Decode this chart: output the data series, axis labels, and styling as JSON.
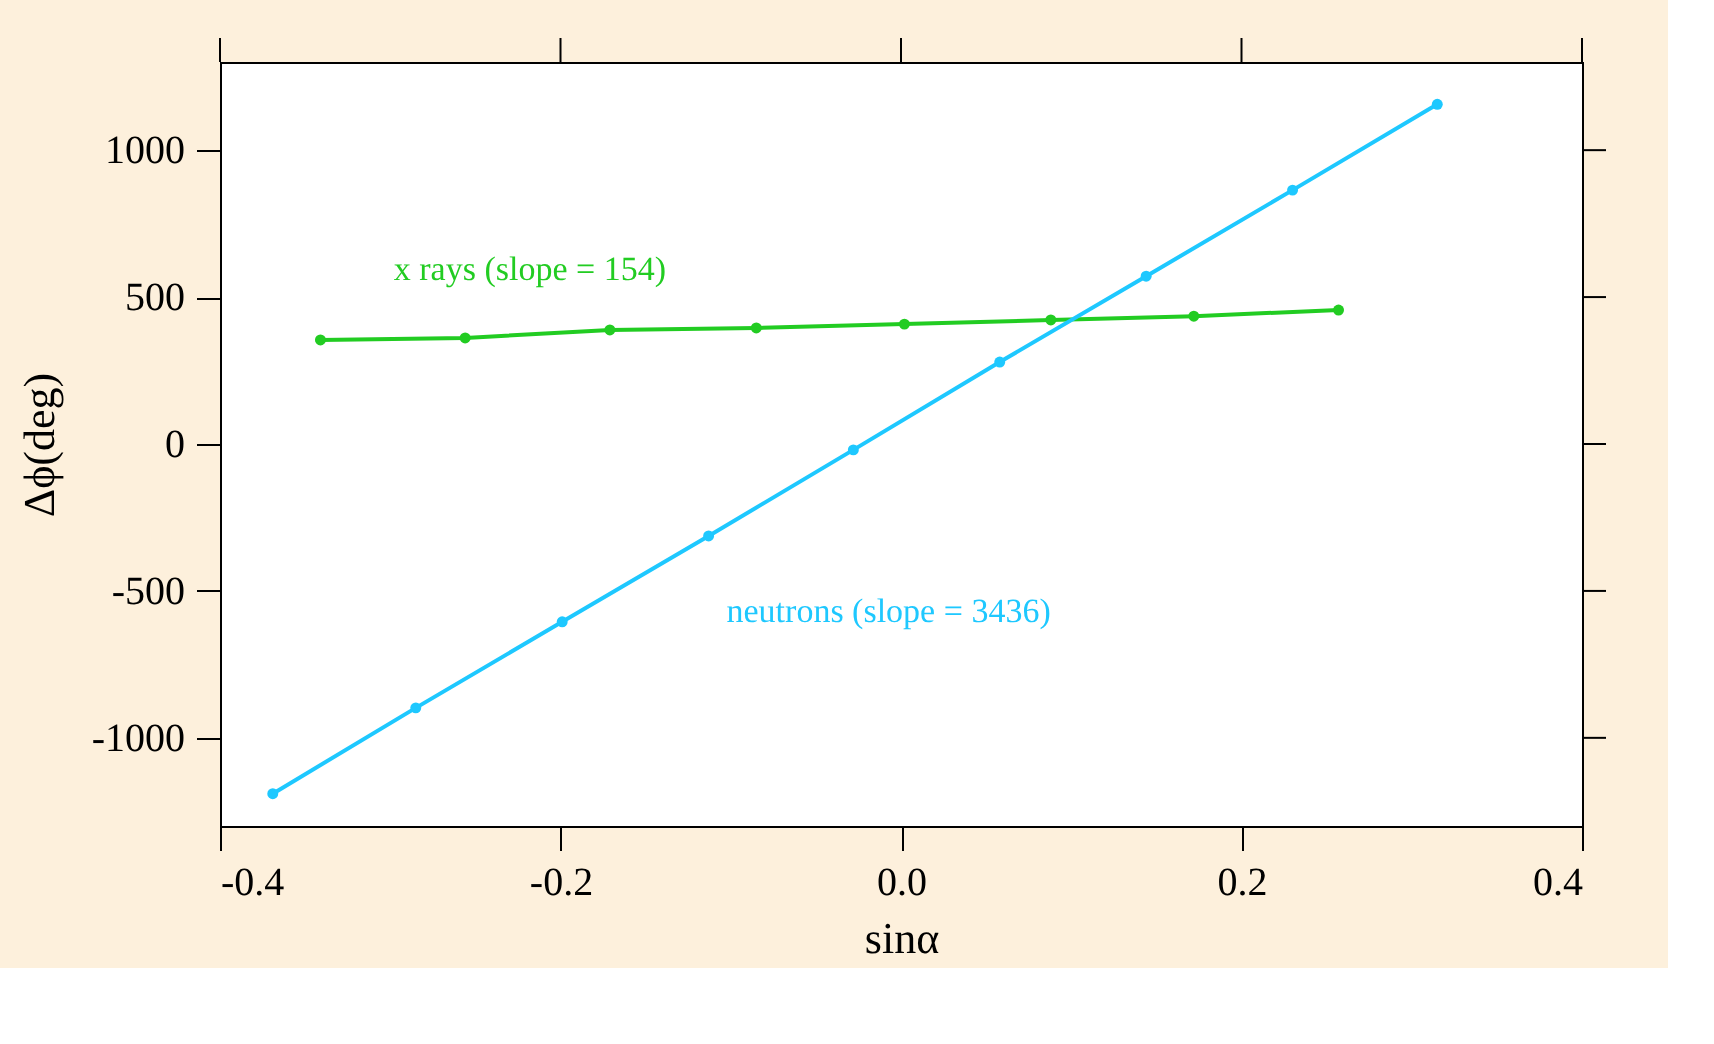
{
  "chart_data": {
    "type": "line",
    "xlabel": "sinα",
    "ylabel": "Δϕ(deg)",
    "xlim": [
      -0.4,
      0.4
    ],
    "xticks": [
      -0.4,
      {
        "value": -0.2,
        "label": "-0.2"
      },
      {
        "value": 0,
        "label": "0.0"
      },
      0.2,
      0.4
    ],
    "ylim": [
      -1300,
      1300
    ],
    "yticks": [
      -1000,
      -500,
      0,
      500,
      1000
    ],
    "grid": false,
    "marker": "circle",
    "line_style": "solid",
    "series": [
      {
        "name": "x rays (slope = 154)",
        "color": "#22cc22",
        "x": [
          -0.341,
          -0.256,
          -0.171,
          -0.085,
          0.002,
          0.088,
          0.172,
          0.257
        ],
        "values": [
          354,
          361,
          388,
          395,
          408,
          422,
          435,
          456
        ]
      },
      {
        "name": "neutrons (slope = 3436)",
        "color": "#1ec8ff",
        "x": [
          -0.369,
          -0.285,
          -0.199,
          -0.113,
          -0.028,
          0.058,
          0.144,
          0.23,
          0.315
        ],
        "values": [
          -1190,
          -898,
          -605,
          -313,
          -20,
          279,
          571,
          864,
          1156
        ]
      }
    ]
  }
}
